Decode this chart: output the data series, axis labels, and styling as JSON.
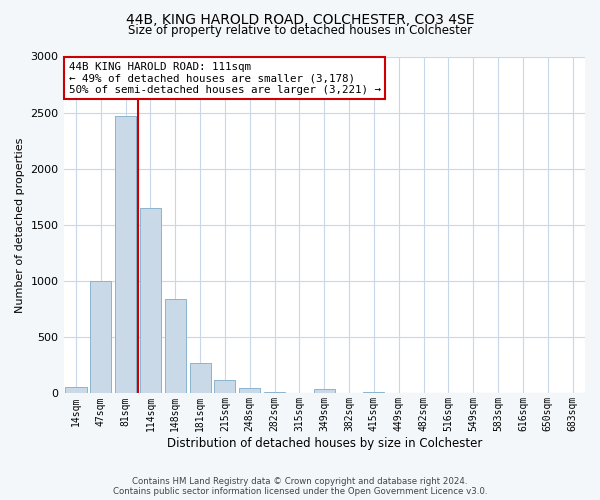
{
  "title": "44B, KING HAROLD ROAD, COLCHESTER, CO3 4SE",
  "subtitle": "Size of property relative to detached houses in Colchester",
  "xlabel": "Distribution of detached houses by size in Colchester",
  "ylabel": "Number of detached properties",
  "bar_labels": [
    "14sqm",
    "47sqm",
    "81sqm",
    "114sqm",
    "148sqm",
    "181sqm",
    "215sqm",
    "248sqm",
    "282sqm",
    "315sqm",
    "349sqm",
    "382sqm",
    "415sqm",
    "449sqm",
    "482sqm",
    "516sqm",
    "549sqm",
    "583sqm",
    "616sqm",
    "650sqm",
    "683sqm"
  ],
  "bar_values": [
    55,
    1000,
    2470,
    1650,
    840,
    270,
    120,
    45,
    10,
    0,
    35,
    0,
    15,
    0,
    0,
    0,
    0,
    0,
    0,
    0,
    0
  ],
  "bar_color": "#c9d9e8",
  "bar_edge_color": "#8ab4ce",
  "vline_color": "#cc0000",
  "annotation_title": "44B KING HAROLD ROAD: 111sqm",
  "annotation_line1": "← 49% of detached houses are smaller (3,178)",
  "annotation_line2": "50% of semi-detached houses are larger (3,221) →",
  "annotation_box_color": "#ffffff",
  "annotation_box_edge": "#cc0000",
  "ylim": [
    0,
    3000
  ],
  "yticks": [
    0,
    500,
    1000,
    1500,
    2000,
    2500,
    3000
  ],
  "footer_line1": "Contains HM Land Registry data © Crown copyright and database right 2024.",
  "footer_line2": "Contains public sector information licensed under the Open Government Licence v3.0.",
  "bg_color": "#f4f7fa",
  "plot_bg_color": "#ffffff",
  "grid_color": "#c8d8e8"
}
